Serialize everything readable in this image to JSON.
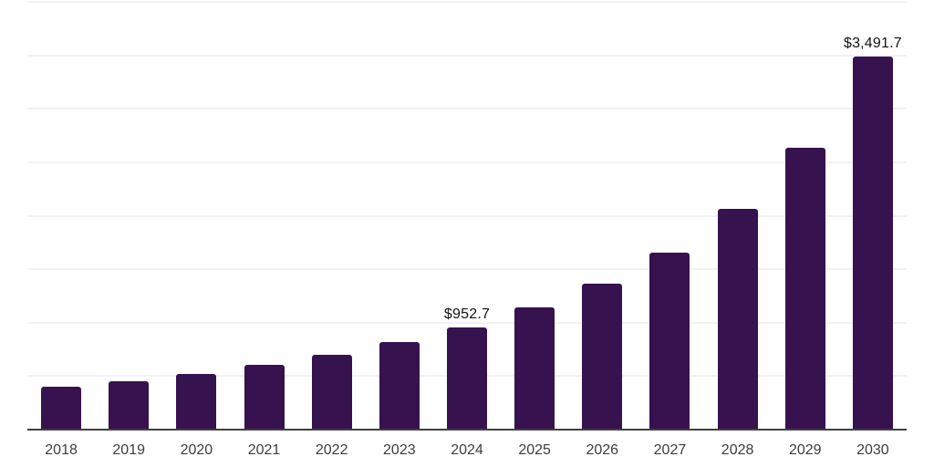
{
  "chart_data": {
    "type": "bar",
    "title": "",
    "xlabel": "",
    "ylabel": "",
    "categories": [
      "2018",
      "2019",
      "2020",
      "2021",
      "2022",
      "2023",
      "2024",
      "2025",
      "2026",
      "2027",
      "2028",
      "2029",
      "2030"
    ],
    "values": [
      398,
      455,
      520,
      605,
      699,
      818,
      952.7,
      1140,
      1364,
      1654,
      2064,
      2635,
      3491.7
    ],
    "value_labels": [
      "",
      "",
      "",
      "",
      "",
      "",
      "$952.7",
      "",
      "",
      "",
      "",
      "",
      "$3,491.7"
    ],
    "ylim": [
      0,
      4000
    ],
    "grid_step": 500,
    "grid": "horizontal-only",
    "legend": "none",
    "y_axis_tick_labels_visible": false,
    "colors": {
      "bar": "#36124e",
      "gridline": "#f2f2f5",
      "axis_line": "#404040",
      "tick_label": "#3d3d3d",
      "value_label": "#131313",
      "background": "#ffffff"
    }
  }
}
